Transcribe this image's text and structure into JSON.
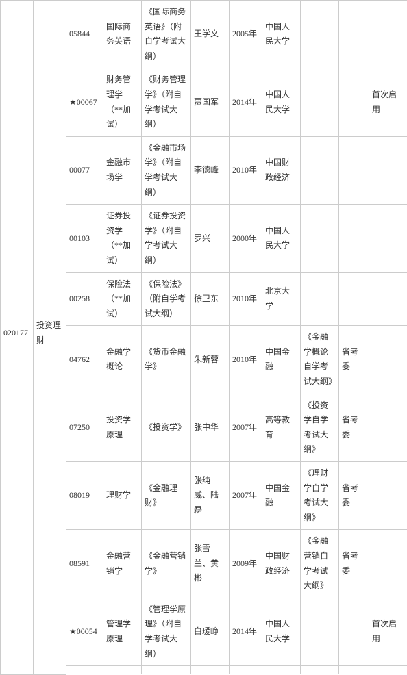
{
  "rows": [
    {
      "c1": "",
      "c1_rowspan": 1,
      "c2": "",
      "c2_rowspan": 1,
      "c3": "05844",
      "c4": "国际商务英语",
      "c5": "《国际商务英语》（附自学考试大纲）",
      "c6": "王学文",
      "c7": "2005年",
      "c8": "中国人民大学",
      "c9": "",
      "c10": "",
      "c11": ""
    },
    {
      "c1": "020177",
      "c1_rowspan": 8,
      "c2": "投资理财",
      "c2_rowspan": 8,
      "c3": "★00067",
      "c4": "财务管理学（**加试）",
      "c5": "《财务管理学》（附自学考试大纲）",
      "c6": "贾国军",
      "c7": "2014年",
      "c8": "中国人民大学",
      "c9": "",
      "c10": "",
      "c11": "首次启用"
    },
    {
      "c3": "00077",
      "c4": "金融市场学",
      "c5": "《金融市场学》（附自学考试大纲）",
      "c6": "李德峰",
      "c7": "2010年",
      "c8": "中国财政经济",
      "c9": "",
      "c10": "",
      "c11": ""
    },
    {
      "c3": "00103",
      "c4": "证券投资学（**加试）",
      "c5": "《证券投资学》（附自学考试大纲）",
      "c6": "罗兴",
      "c7": "2000年",
      "c8": "中国人民大学",
      "c9": "",
      "c10": "",
      "c11": ""
    },
    {
      "c3": "00258",
      "c4": "保险法（**加试）",
      "c5": "《保险法》（附自学考试大纲）",
      "c6": "徐卫东",
      "c7": "2010年",
      "c8": "北京大学",
      "c9": "",
      "c10": "",
      "c11": ""
    },
    {
      "c3": "04762",
      "c4": "金融学概论",
      "c5": "《货币金融学》",
      "c6": "朱新蓉",
      "c7": "2010年",
      "c8": "中国金融",
      "c9": "《金融学概论自学考试大纲》",
      "c10": "省考委",
      "c11": ""
    },
    {
      "c3": "07250",
      "c4": "投资学原理",
      "c5": "《投资学》",
      "c6": "张中华",
      "c7": "2007年",
      "c8": "高等教育",
      "c9": "《投资学自学考试大纲》",
      "c10": "省考委",
      "c11": ""
    },
    {
      "c3": "08019",
      "c4": "理财学",
      "c5": "《金融理财》",
      "c6": "张纯威、陆磊",
      "c7": "2007年",
      "c8": "中国金融",
      "c9": "《理财学自学考试大纲》",
      "c10": "省考委",
      "c11": ""
    },
    {
      "c3": "08591",
      "c4": "金融营销学",
      "c5": "《金融营销学》",
      "c6": "张雪兰、黄彬",
      "c7": "2009年",
      "c8": "中国财政经济",
      "c9": "《金融营销自学考试大纲》",
      "c10": "省考委",
      "c11": ""
    },
    {
      "c1": "",
      "c1_rowspan": 2,
      "c2": "",
      "c2_rowspan": 2,
      "c3": "★00054",
      "c4": "管理学原理",
      "c5": "《管理学原理》（附自学考试大纲）",
      "c6": "白瑗峥",
      "c7": "2014年",
      "c8": "中国人民大学",
      "c9": "",
      "c10": "",
      "c11": "首次启用"
    },
    {
      "c3": "",
      "c4": "",
      "c5": "",
      "c6": "",
      "c7": "",
      "c8": "",
      "c9": "",
      "c10": "",
      "c11": ""
    }
  ]
}
